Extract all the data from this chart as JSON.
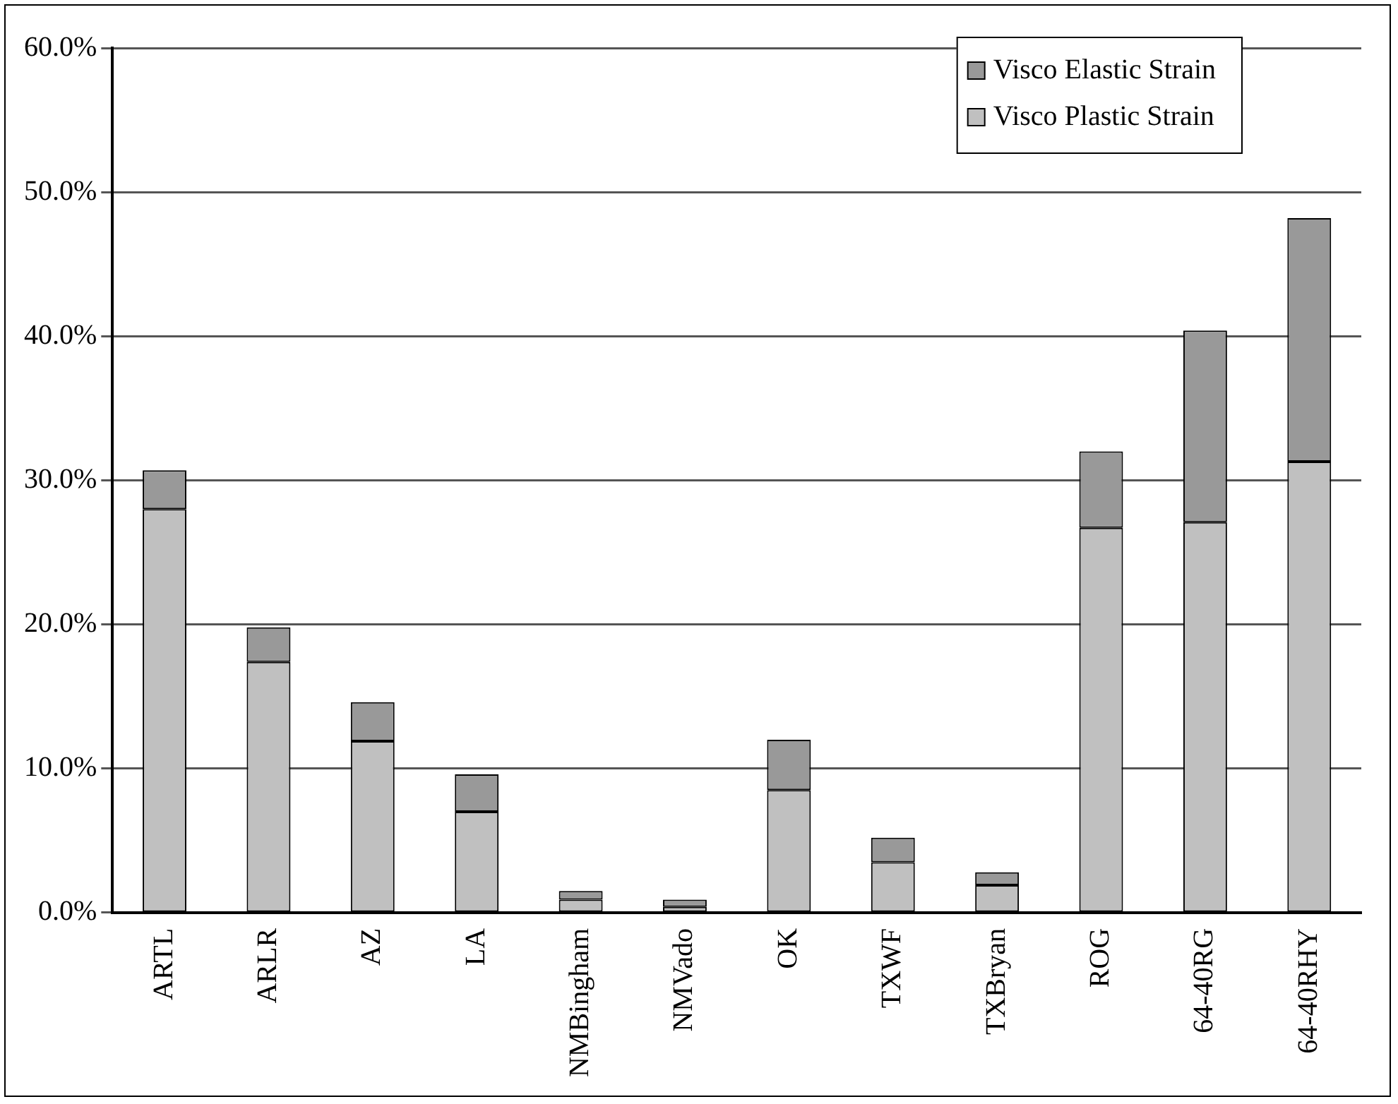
{
  "chart_data": {
    "type": "bar",
    "stacked": true,
    "categories": [
      "ARTL",
      "ARLR",
      "AZ",
      "LA",
      "NMBingham",
      "NMVado",
      "OK",
      "TXWF",
      "TXBryan",
      "ROG",
      "64-40RG",
      "64-40RHY"
    ],
    "series": [
      {
        "name": "Visco Plastic Strain",
        "color": "#c0c0c0",
        "values": [
          28.0,
          17.4,
          11.9,
          7.0,
          0.9,
          0.4,
          8.5,
          3.5,
          1.9,
          26.7,
          27.1,
          31.3
        ]
      },
      {
        "name": "Visco Elastic Strain",
        "color": "#999999",
        "values": [
          2.7,
          2.4,
          2.7,
          2.6,
          0.6,
          0.5,
          3.5,
          1.7,
          0.9,
          5.3,
          13.3,
          16.9
        ]
      }
    ],
    "ylim": [
      0,
      60
    ],
    "yticks": [
      {
        "value": 0,
        "label": "0.0%"
      },
      {
        "value": 10,
        "label": "10.0%"
      },
      {
        "value": 20,
        "label": "20.0%"
      },
      {
        "value": 30,
        "label": "30.0%"
      },
      {
        "value": 40,
        "label": "40.0%"
      },
      {
        "value": 50,
        "label": "50.0%"
      },
      {
        "value": 60,
        "label": "60.0%"
      }
    ],
    "grid": "y",
    "legend": "top right"
  }
}
